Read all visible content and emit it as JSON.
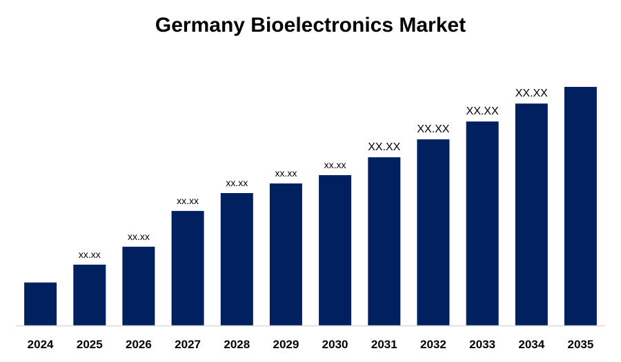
{
  "chart_data": {
    "type": "bar",
    "title": "Germany Bioelectronics Market",
    "xlabel": "",
    "ylabel": "",
    "categories": [
      "2024",
      "2025",
      "2026",
      "2027",
      "2028",
      "2029",
      "2030",
      "2031",
      "2032",
      "2033",
      "2034",
      "2035"
    ],
    "values": [
      18,
      25.5,
      33,
      48,
      55.5,
      59.5,
      63,
      70.5,
      78,
      85.5,
      93,
      100
    ],
    "data_labels": [
      "",
      "xx.xx",
      "xx.xx",
      "xx.xx",
      "xx.xx",
      "xx.xx",
      "xx.xx",
      "XX.XX",
      "XX.XX",
      "XX.XX",
      "XX.XX",
      ""
    ],
    "ylim": [
      0,
      100
    ],
    "grid": false,
    "legend": "none",
    "bar_color": "#002060",
    "axis_color": "#d9d9d9"
  }
}
